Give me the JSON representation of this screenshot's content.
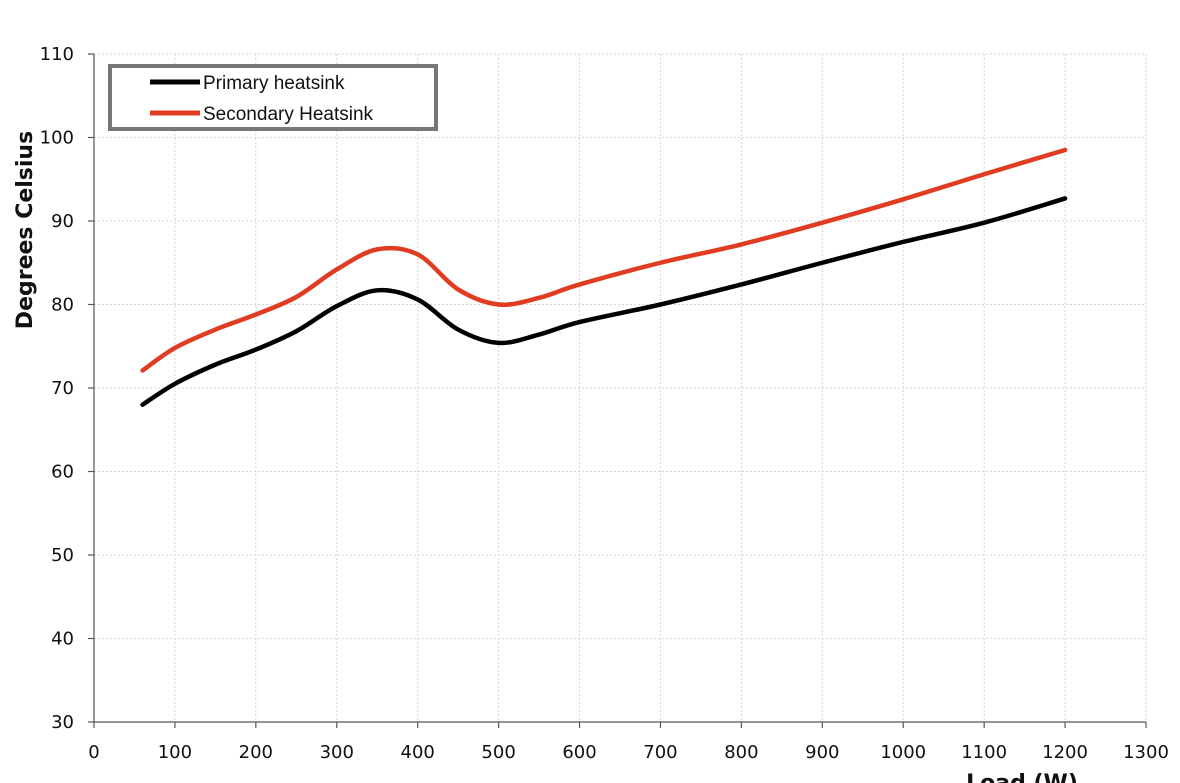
{
  "chart_data": {
    "type": "line",
    "title": "",
    "xlabel": "Load (W)",
    "ylabel": "Degrees Celsius",
    "xlim": [
      0,
      1300
    ],
    "ylim": [
      30,
      110
    ],
    "xticks": [
      0,
      100,
      200,
      300,
      400,
      500,
      600,
      700,
      800,
      900,
      1000,
      1100,
      1200,
      1300
    ],
    "yticks": [
      30,
      40,
      50,
      60,
      70,
      80,
      90,
      100,
      110
    ],
    "grid": true,
    "legend_position": "top-left",
    "series": [
      {
        "name": "Primary heatsink",
        "color": "#000000",
        "x": [
          60,
          100,
          150,
          200,
          250,
          300,
          350,
          400,
          450,
          500,
          550,
          600,
          700,
          800,
          900,
          1000,
          1100,
          1200
        ],
        "y": [
          68.0,
          70.5,
          72.8,
          74.6,
          76.8,
          79.8,
          81.7,
          80.6,
          77.0,
          75.4,
          76.4,
          77.9,
          80.0,
          82.4,
          85.0,
          87.5,
          89.8,
          92.7
        ]
      },
      {
        "name": "Secondary Heatsink",
        "color": "#e03c22",
        "x": [
          60,
          100,
          150,
          200,
          250,
          300,
          350,
          400,
          450,
          500,
          550,
          600,
          700,
          800,
          900,
          1000,
          1100,
          1200
        ],
        "y": [
          72.1,
          74.8,
          77.0,
          78.8,
          80.9,
          84.2,
          86.6,
          86.0,
          81.8,
          80.0,
          80.8,
          82.4,
          85.0,
          87.2,
          89.8,
          92.6,
          95.6,
          98.5
        ]
      }
    ]
  }
}
